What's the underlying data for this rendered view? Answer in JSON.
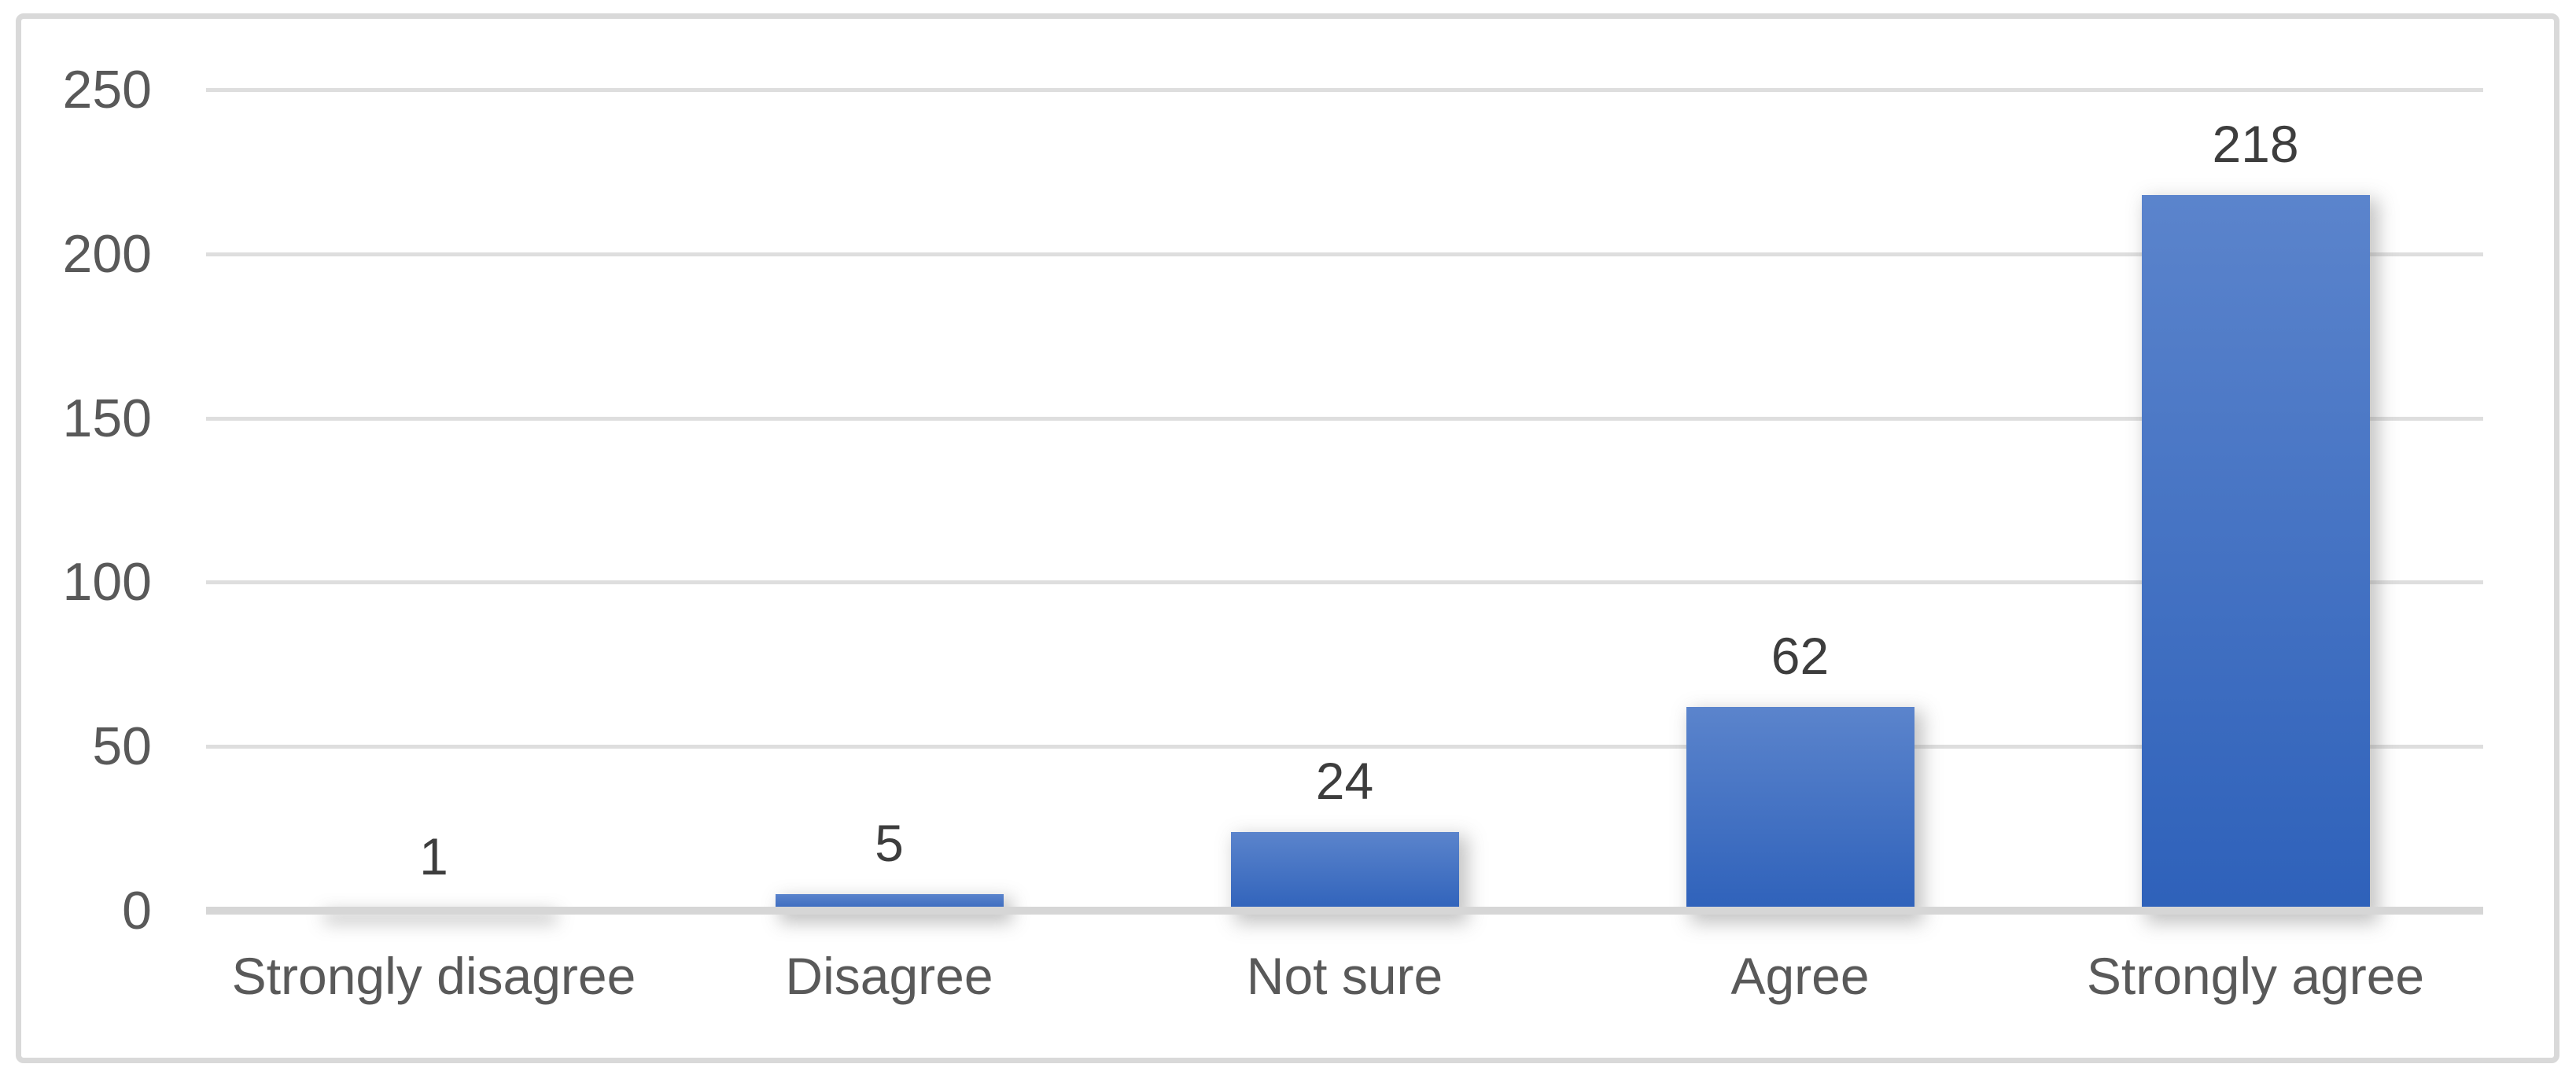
{
  "chart_data": {
    "type": "bar",
    "title": "",
    "xlabel": "",
    "ylabel": "",
    "categories": [
      "Strongly disagree",
      "Disagree",
      "Not sure",
      "Agree",
      "Strongly agree"
    ],
    "values": [
      1,
      5,
      24,
      62,
      218
    ],
    "data_labels": [
      "1",
      "5",
      "24",
      "62",
      "218"
    ],
    "ylim": [
      0,
      250
    ],
    "yticks": [
      0,
      50,
      100,
      150,
      200,
      250
    ],
    "grid": true,
    "legend": false,
    "bar_gap_ratio": 1.0,
    "colors": {
      "bar_gradient_top": "#5b84cc",
      "bar_gradient_bottom": "#2e61ba",
      "gridline": "#dedede",
      "axis_line": "#d6d6d6",
      "tick_label": "#595959",
      "category_label": "#595959",
      "data_label": "#3d3d3d",
      "frame_border": "#d9d9d9",
      "background": "#ffffff"
    }
  }
}
